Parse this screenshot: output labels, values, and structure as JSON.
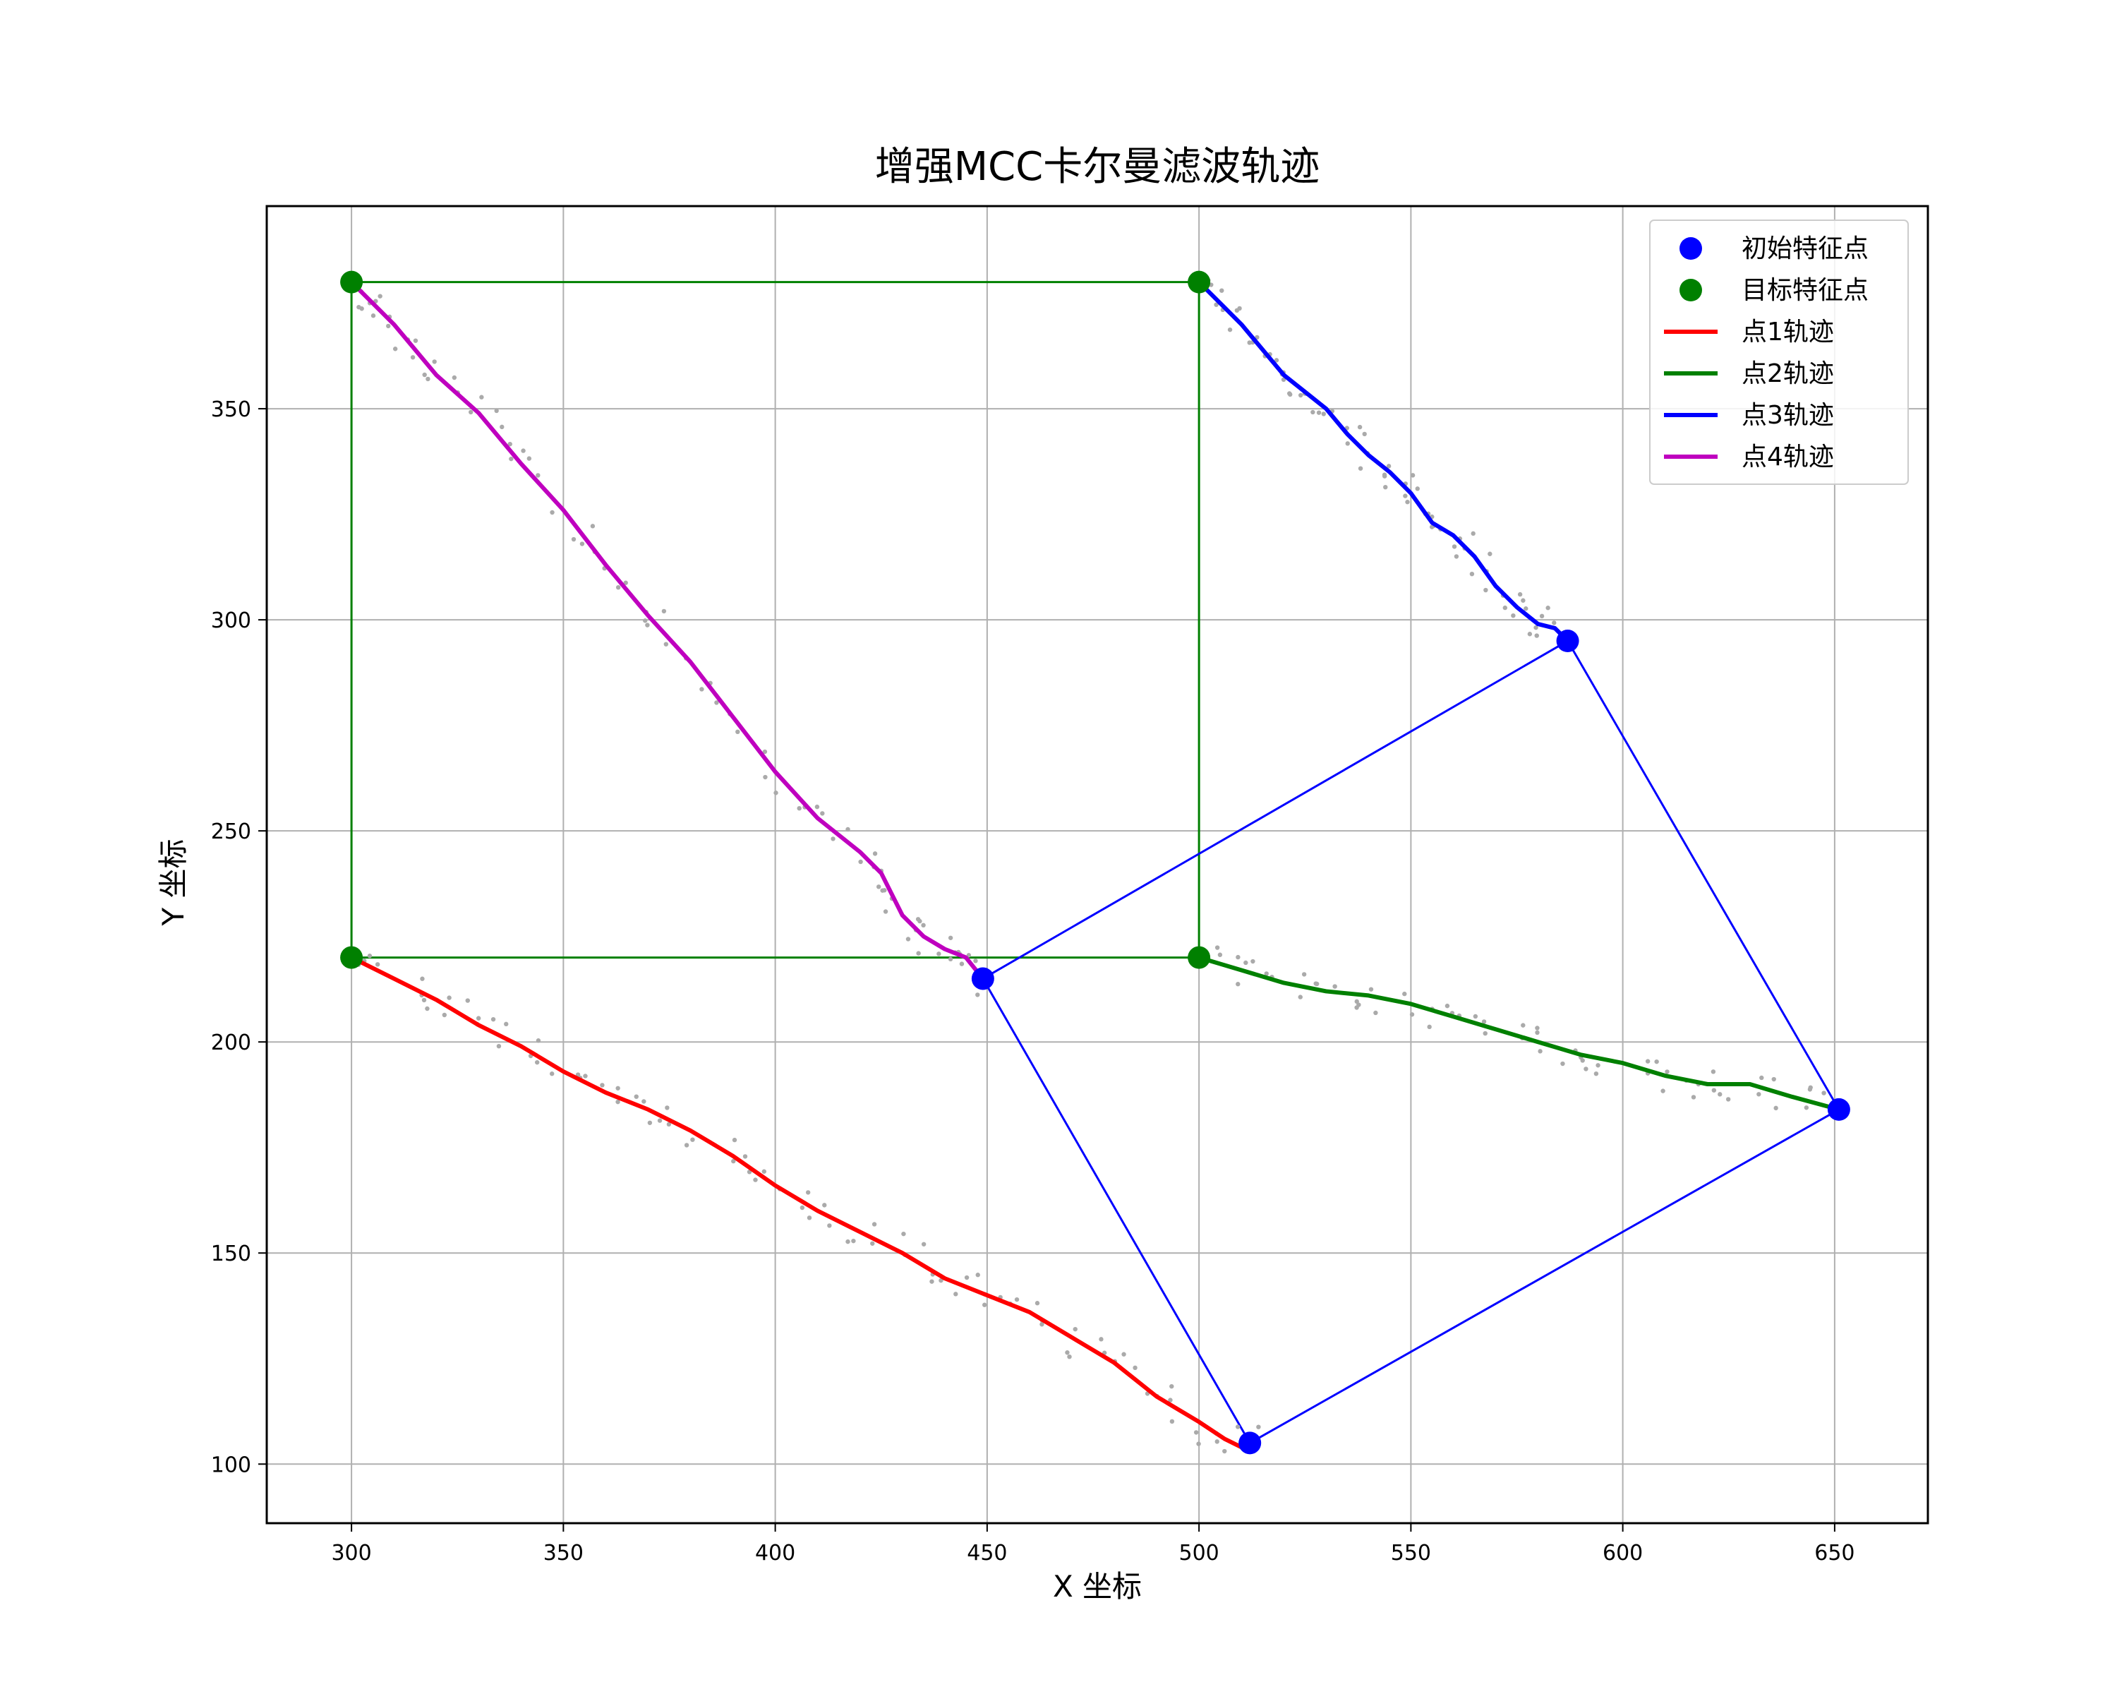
{
  "chart_data": {
    "type": "line",
    "title": "增强MCC卡尔曼滤波轨迹",
    "xlabel": "X 坐标",
    "ylabel": "Y 坐标",
    "xlim": [
      280,
      672
    ],
    "ylim": [
      86,
      398
    ],
    "xticks": [
      300,
      350,
      400,
      450,
      500,
      550,
      600,
      650
    ],
    "yticks": [
      100,
      150,
      200,
      250,
      300,
      350
    ],
    "grid": true,
    "legend": {
      "placement": "top-right",
      "entries": [
        {
          "label": "初始特征点",
          "kind": "marker",
          "color": "#0000ff"
        },
        {
          "label": "目标特征点",
          "kind": "marker",
          "color": "#008000"
        },
        {
          "label": "点1轨迹",
          "kind": "line",
          "color": "#ff0000"
        },
        {
          "label": "点2轨迹",
          "kind": "line",
          "color": "#008000"
        },
        {
          "label": "点3轨迹",
          "kind": "line",
          "color": "#0000ff"
        },
        {
          "label": "点4轨迹",
          "kind": "line",
          "color": "#bf00bf"
        }
      ]
    },
    "initial_points": [
      [
        449,
        215
      ],
      [
        512,
        105
      ],
      [
        651,
        184
      ],
      [
        587,
        295
      ]
    ],
    "target_points": [
      [
        300,
        220
      ],
      [
        500,
        220
      ],
      [
        500,
        380
      ],
      [
        300,
        380
      ]
    ],
    "initial_color": "#0000ff",
    "target_color": "#008000",
    "noise_color": "#aaaaaa",
    "series": [
      {
        "label": "点1轨迹",
        "color": "#ff0000",
        "points": [
          [
            300,
            220
          ],
          [
            310,
            215
          ],
          [
            320,
            210
          ],
          [
            330,
            204
          ],
          [
            340,
            199
          ],
          [
            350,
            193
          ],
          [
            360,
            188
          ],
          [
            370,
            184
          ],
          [
            380,
            179
          ],
          [
            390,
            173
          ],
          [
            400,
            166
          ],
          [
            410,
            160
          ],
          [
            420,
            155
          ],
          [
            430,
            150
          ],
          [
            440,
            144
          ],
          [
            450,
            140
          ],
          [
            460,
            136
          ],
          [
            470,
            130
          ],
          [
            480,
            124
          ],
          [
            490,
            116
          ],
          [
            500,
            110
          ],
          [
            506,
            106
          ],
          [
            510,
            104
          ],
          [
            513,
            105
          ]
        ]
      },
      {
        "label": "点2轨迹",
        "color": "#008000",
        "points": [
          [
            500,
            220
          ],
          [
            510,
            217
          ],
          [
            520,
            214
          ],
          [
            530,
            212
          ],
          [
            540,
            211
          ],
          [
            550,
            209
          ],
          [
            560,
            206
          ],
          [
            570,
            203
          ],
          [
            580,
            200
          ],
          [
            590,
            197
          ],
          [
            600,
            195
          ],
          [
            610,
            192
          ],
          [
            620,
            190
          ],
          [
            630,
            190
          ],
          [
            640,
            187
          ],
          [
            651,
            184
          ]
        ]
      },
      {
        "label": "点3轨迹",
        "color": "#0000ff",
        "points": [
          [
            500,
            380
          ],
          [
            505,
            375
          ],
          [
            510,
            370
          ],
          [
            515,
            364
          ],
          [
            520,
            358
          ],
          [
            525,
            354
          ],
          [
            530,
            350
          ],
          [
            535,
            344
          ],
          [
            540,
            339
          ],
          [
            545,
            335
          ],
          [
            550,
            330
          ],
          [
            555,
            323
          ],
          [
            560,
            320
          ],
          [
            565,
            315
          ],
          [
            570,
            308
          ],
          [
            575,
            303
          ],
          [
            580,
            299
          ],
          [
            584,
            298
          ],
          [
            587,
            295
          ]
        ]
      },
      {
        "label": "点4轨迹",
        "color": "#bf00bf",
        "points": [
          [
            300,
            380
          ],
          [
            305,
            375
          ],
          [
            310,
            370
          ],
          [
            315,
            364
          ],
          [
            320,
            358
          ],
          [
            330,
            349
          ],
          [
            340,
            337
          ],
          [
            350,
            326
          ],
          [
            360,
            313
          ],
          [
            370,
            301
          ],
          [
            380,
            290
          ],
          [
            390,
            277
          ],
          [
            400,
            264
          ],
          [
            410,
            253
          ],
          [
            420,
            245
          ],
          [
            425,
            240
          ],
          [
            430,
            230
          ],
          [
            435,
            225
          ],
          [
            440,
            222
          ],
          [
            445,
            220
          ],
          [
            449,
            215
          ]
        ]
      }
    ],
    "target_frame": [
      [
        300,
        220
      ],
      [
        500,
        220
      ],
      [
        500,
        380
      ],
      [
        300,
        380
      ]
    ],
    "initial_frame": [
      [
        449,
        215
      ],
      [
        512,
        105
      ],
      [
        651,
        184
      ],
      [
        587,
        295
      ]
    ]
  }
}
